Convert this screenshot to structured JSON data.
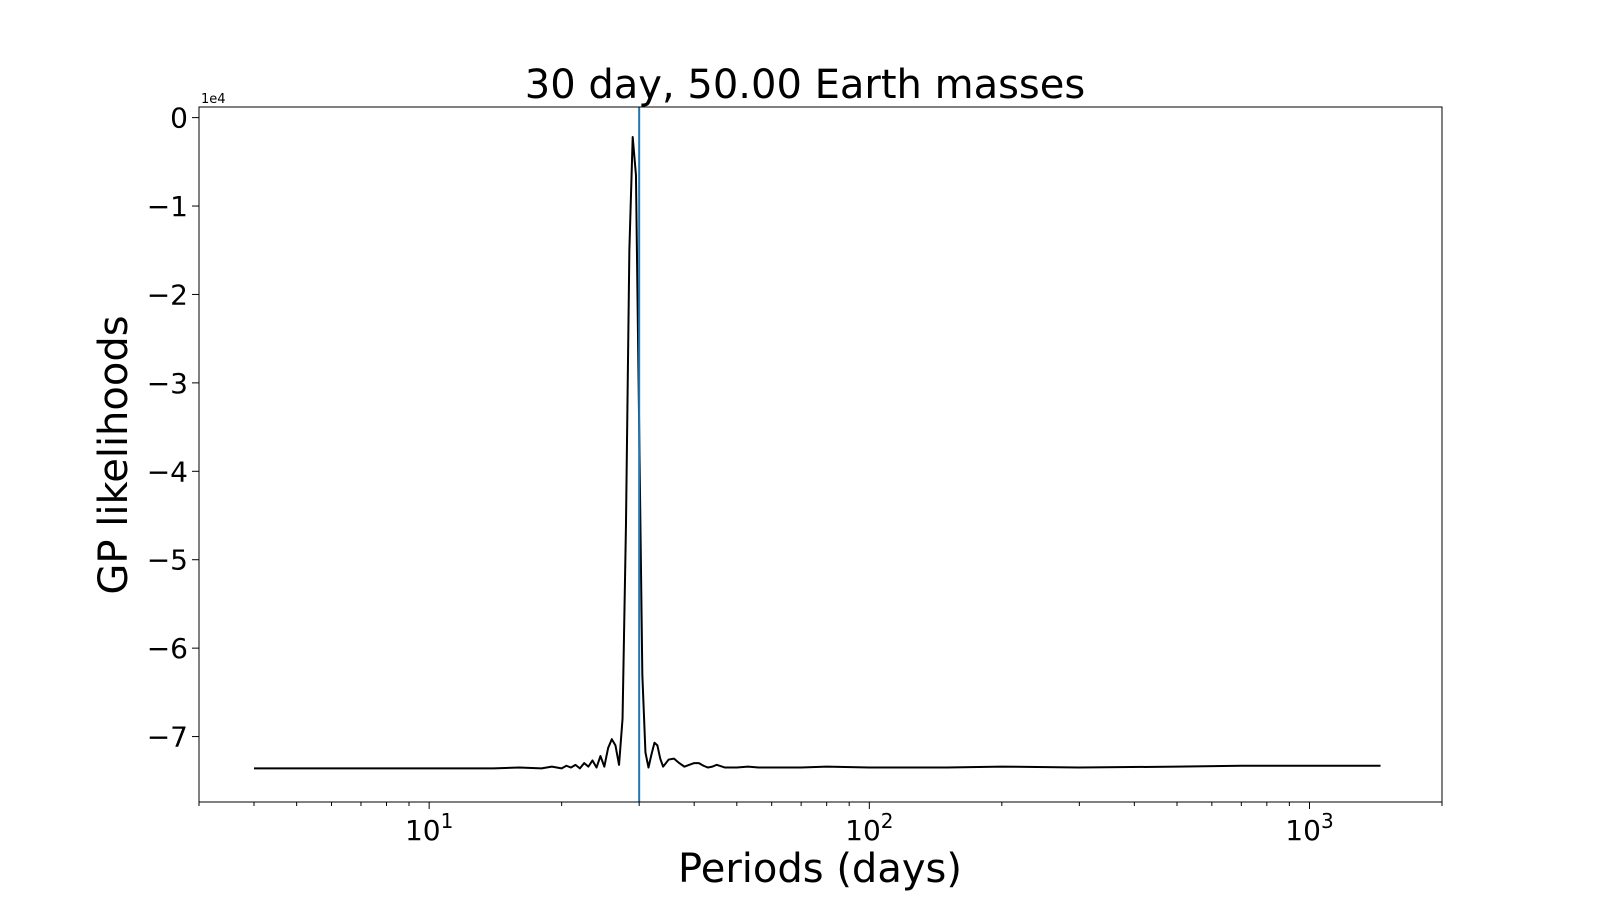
{
  "chart_data": {
    "type": "line",
    "title": "30 day, 50.00 Earth masses",
    "xlabel": "Periods (days)",
    "ylabel": "GP likelihoods",
    "y_offset_label": "1e4",
    "x_scale": "log",
    "xlim": [
      3,
      2000
    ],
    "ylim": [
      -7.74,
      0.12
    ],
    "x_major_ticks": [
      {
        "value": 10,
        "base": "10",
        "exp": "1"
      },
      {
        "value": 100,
        "base": "10",
        "exp": "2"
      },
      {
        "value": 1000,
        "base": "10",
        "exp": "3"
      }
    ],
    "y_ticks": [
      {
        "value": 0,
        "label": "0"
      },
      {
        "value": -1,
        "label": "−1"
      },
      {
        "value": -2,
        "label": "−2"
      },
      {
        "value": -3,
        "label": "−3"
      },
      {
        "value": -4,
        "label": "−4"
      },
      {
        "value": -5,
        "label": "−5"
      },
      {
        "value": -6,
        "label": "−6"
      },
      {
        "value": -7,
        "label": "−7"
      }
    ],
    "grid": false,
    "vline": {
      "x": 30,
      "color": "#1f77b4"
    },
    "line_color": "#000000",
    "series": [
      {
        "x": [
          4.0,
          5.0,
          6.0,
          7.0,
          8.0,
          9.0,
          10.0,
          12.0,
          14.0,
          16.0,
          18.0,
          19.0,
          20.0,
          20.5,
          21.0,
          21.5,
          22.0,
          22.5,
          23.0,
          23.5,
          24.0,
          24.5,
          25.0,
          25.5,
          26.0,
          26.5,
          27.0,
          27.5,
          28.0,
          28.5,
          29.0,
          29.5,
          30.0,
          30.5,
          31.0,
          31.5,
          32.0,
          32.5,
          33.0,
          33.5,
          34.0,
          34.5,
          35.0,
          36.0,
          37.0,
          38.0,
          39.0,
          40.0,
          41.0,
          42.0,
          43.0,
          44.0,
          45.0,
          47.0,
          50.0,
          53.0,
          56.0,
          60.0,
          70.0,
          80.0,
          100.0,
          150.0,
          200.0,
          300.0,
          500.0,
          700.0,
          1000.0,
          1450.0
        ],
        "y": [
          -7.36,
          -7.36,
          -7.36,
          -7.36,
          -7.36,
          -7.36,
          -7.36,
          -7.36,
          -7.36,
          -7.35,
          -7.36,
          -7.34,
          -7.36,
          -7.33,
          -7.35,
          -7.32,
          -7.36,
          -7.3,
          -7.34,
          -7.27,
          -7.35,
          -7.22,
          -7.34,
          -7.13,
          -7.03,
          -7.1,
          -7.32,
          -6.8,
          -4.6,
          -1.5,
          -0.22,
          -0.65,
          -3.5,
          -6.3,
          -7.18,
          -7.35,
          -7.2,
          -7.07,
          -7.1,
          -7.25,
          -7.34,
          -7.3,
          -7.26,
          -7.25,
          -7.3,
          -7.34,
          -7.32,
          -7.3,
          -7.3,
          -7.33,
          -7.35,
          -7.34,
          -7.32,
          -7.35,
          -7.35,
          -7.34,
          -7.35,
          -7.35,
          -7.35,
          -7.34,
          -7.35,
          -7.35,
          -7.34,
          -7.35,
          -7.34,
          -7.33,
          -7.33,
          -7.33
        ]
      }
    ]
  }
}
